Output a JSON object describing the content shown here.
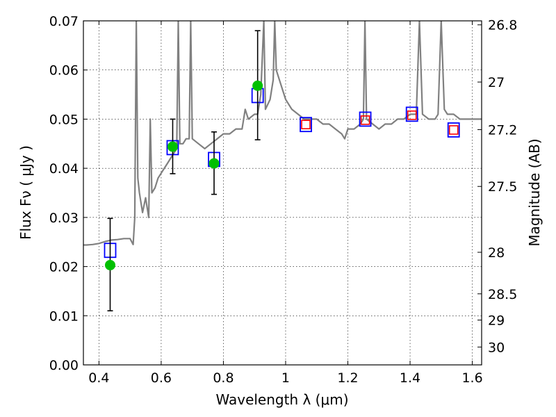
{
  "chart_data": {
    "type": "scatter",
    "title": "",
    "xlabel": "Wavelength  λ (μm)",
    "ylabel": "Flux  Fν  ( μJy )",
    "y2label": "Magnitude (AB)",
    "xlim": [
      0.35,
      1.63
    ],
    "ylim": [
      0.0,
      0.07
    ],
    "grid": true,
    "x_ticks": [
      0.4,
      0.6,
      0.8,
      1.0,
      1.2,
      1.4,
      1.6
    ],
    "x_tick_labels": [
      "0.4",
      "0.6",
      "0.8",
      "1",
      "1.2",
      "1.4",
      "1.6"
    ],
    "y_ticks": [
      0.0,
      0.01,
      0.02,
      0.03,
      0.04,
      0.05,
      0.06,
      0.07
    ],
    "y_tick_labels": [
      "0.00",
      "0.01",
      "0.02",
      "0.03",
      "0.04",
      "0.05",
      "0.06",
      "0.07"
    ],
    "y2_ticks": [
      26.8,
      27.0,
      27.2,
      27.5,
      28.0,
      28.5,
      29.0,
      30.0
    ],
    "y2_tick_labels": [
      "26.8",
      "27",
      "27.2",
      "27.5",
      "28",
      "28.5",
      "29",
      "30"
    ],
    "series": [
      {
        "kind": "line",
        "color": "#808080",
        "points": [
          [
            0.35,
            0.0244
          ],
          [
            0.36,
            0.0244
          ],
          [
            0.38,
            0.0245
          ],
          [
            0.4,
            0.0247
          ],
          [
            0.42,
            0.0251
          ],
          [
            0.44,
            0.0254
          ],
          [
            0.46,
            0.0255
          ],
          [
            0.48,
            0.0257
          ],
          [
            0.5,
            0.0257
          ],
          [
            0.51,
            0.0245
          ],
          [
            0.515,
            0.03
          ],
          [
            0.52,
            0.07
          ],
          [
            0.525,
            0.038
          ],
          [
            0.53,
            0.035
          ],
          [
            0.54,
            0.031
          ],
          [
            0.55,
            0.034
          ],
          [
            0.56,
            0.03
          ],
          [
            0.565,
            0.05
          ],
          [
            0.57,
            0.035
          ],
          [
            0.58,
            0.036
          ],
          [
            0.59,
            0.038
          ],
          [
            0.6,
            0.039
          ],
          [
            0.61,
            0.04
          ],
          [
            0.62,
            0.041
          ],
          [
            0.63,
            0.042
          ],
          [
            0.64,
            0.043
          ],
          [
            0.65,
            0.044
          ],
          [
            0.655,
            0.07
          ],
          [
            0.66,
            0.045
          ],
          [
            0.67,
            0.045
          ],
          [
            0.68,
            0.046
          ],
          [
            0.69,
            0.046
          ],
          [
            0.695,
            0.07
          ],
          [
            0.7,
            0.046
          ],
          [
            0.72,
            0.045
          ],
          [
            0.74,
            0.044
          ],
          [
            0.76,
            0.045
          ],
          [
            0.78,
            0.046
          ],
          [
            0.8,
            0.047
          ],
          [
            0.82,
            0.047
          ],
          [
            0.84,
            0.048
          ],
          [
            0.86,
            0.048
          ],
          [
            0.87,
            0.052
          ],
          [
            0.88,
            0.05
          ],
          [
            0.9,
            0.051
          ],
          [
            0.91,
            0.051
          ],
          [
            0.92,
            0.055
          ],
          [
            0.93,
            0.07
          ],
          [
            0.935,
            0.052
          ],
          [
            0.95,
            0.054
          ],
          [
            0.96,
            0.058
          ],
          [
            0.965,
            0.07
          ],
          [
            0.97,
            0.06
          ],
          [
            0.98,
            0.058
          ],
          [
            0.99,
            0.056
          ],
          [
            1.0,
            0.054
          ],
          [
            1.02,
            0.052
          ],
          [
            1.04,
            0.051
          ],
          [
            1.06,
            0.05
          ],
          [
            1.08,
            0.05
          ],
          [
            1.1,
            0.05
          ],
          [
            1.12,
            0.049
          ],
          [
            1.14,
            0.049
          ],
          [
            1.16,
            0.048
          ],
          [
            1.18,
            0.047
          ],
          [
            1.19,
            0.046
          ],
          [
            1.2,
            0.048
          ],
          [
            1.22,
            0.048
          ],
          [
            1.24,
            0.049
          ],
          [
            1.25,
            0.05
          ],
          [
            1.255,
            0.07
          ],
          [
            1.26,
            0.05
          ],
          [
            1.28,
            0.049
          ],
          [
            1.3,
            0.048
          ],
          [
            1.32,
            0.049
          ],
          [
            1.34,
            0.049
          ],
          [
            1.36,
            0.05
          ],
          [
            1.38,
            0.05
          ],
          [
            1.4,
            0.051
          ],
          [
            1.42,
            0.051
          ],
          [
            1.43,
            0.07
          ],
          [
            1.44,
            0.051
          ],
          [
            1.46,
            0.05
          ],
          [
            1.48,
            0.05
          ],
          [
            1.49,
            0.051
          ],
          [
            1.5,
            0.07
          ],
          [
            1.51,
            0.052
          ],
          [
            1.52,
            0.051
          ],
          [
            1.54,
            0.051
          ],
          [
            1.56,
            0.05
          ],
          [
            1.58,
            0.05
          ],
          [
            1.6,
            0.05
          ],
          [
            1.63,
            0.05
          ]
        ]
      },
      {
        "kind": "square",
        "color": "#0000ff",
        "points": [
          [
            0.436,
            0.0233
          ],
          [
            0.637,
            0.0442
          ],
          [
            0.77,
            0.0418
          ],
          [
            0.91,
            0.0548
          ],
          [
            1.065,
            0.0489
          ],
          [
            1.256,
            0.05
          ],
          [
            1.406,
            0.051
          ],
          [
            1.54,
            0.0478
          ]
        ]
      },
      {
        "kind": "square",
        "color": "#ff0000",
        "points": [
          [
            1.065,
            0.0489
          ],
          [
            1.256,
            0.0498
          ],
          [
            1.406,
            0.0508
          ],
          [
            1.54,
            0.0478
          ]
        ]
      },
      {
        "kind": "circle",
        "color": "#00c000",
        "points": [
          [
            0.436,
            0.0203
          ],
          [
            0.637,
            0.0444
          ],
          [
            0.77,
            0.041
          ],
          [
            0.91,
            0.0568
          ]
        ],
        "error": [
          [
            0.011,
            0.0298
          ],
          [
            0.0389,
            0.05
          ],
          [
            0.0347,
            0.0474
          ],
          [
            0.0458,
            0.068
          ]
        ]
      }
    ]
  }
}
